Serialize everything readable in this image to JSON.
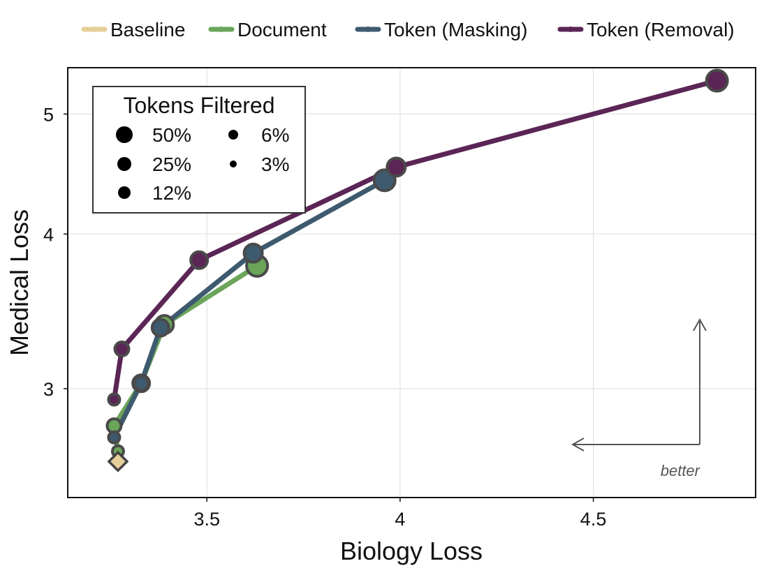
{
  "chart_data": {
    "type": "line",
    "xlabel": "Biology Loss",
    "ylabel": "Medical Loss",
    "xlim": [
      3.14,
      4.92
    ],
    "ylim": [
      2.45,
      5.45
    ],
    "y_scale": "log",
    "x_ticks": [
      3.5,
      4,
      4.5
    ],
    "x_tick_labels": [
      "3.5",
      "4",
      "4.5"
    ],
    "y_ticks": [
      3,
      4,
      5
    ],
    "y_tick_labels": [
      "3",
      "4",
      "5"
    ],
    "grid": true,
    "legend_placement": "top (above plot)",
    "series": [
      {
        "name": "Baseline",
        "color": "#e6cf98",
        "marker": "diamond",
        "points": [
          {
            "x": 3.27,
            "y": 2.62,
            "tokens_filtered": null
          }
        ]
      },
      {
        "name": "Document",
        "color": "#6aa55a",
        "marker": "circle",
        "points": [
          {
            "x": 3.27,
            "y": 2.67,
            "tokens_filtered": "3%"
          },
          {
            "x": 3.26,
            "y": 2.8,
            "tokens_filtered": "6%"
          },
          {
            "x": 3.33,
            "y": 3.03,
            "tokens_filtered": "12%"
          },
          {
            "x": 3.39,
            "y": 3.38,
            "tokens_filtered": "25%"
          },
          {
            "x": 3.63,
            "y": 3.77,
            "tokens_filtered": "50%"
          }
        ]
      },
      {
        "name": "Token (Masking)",
        "color": "#3e5a6e",
        "marker": "circle",
        "points": [
          {
            "x": 3.26,
            "y": 2.74,
            "tokens_filtered": "3%"
          },
          {
            "x": 3.33,
            "y": 3.03,
            "tokens_filtered": "6%"
          },
          {
            "x": 3.38,
            "y": 3.36,
            "tokens_filtered": "12%"
          },
          {
            "x": 3.62,
            "y": 3.86,
            "tokens_filtered": "25%"
          },
          {
            "x": 3.96,
            "y": 4.42,
            "tokens_filtered": "50%"
          }
        ]
      },
      {
        "name": "Token (Removal)",
        "color": "#5b2556",
        "marker": "circle",
        "points": [
          {
            "x": 3.26,
            "y": 2.94,
            "tokens_filtered": "3%"
          },
          {
            "x": 3.28,
            "y": 3.23,
            "tokens_filtered": "6%"
          },
          {
            "x": 3.48,
            "y": 3.81,
            "tokens_filtered": "12%"
          },
          {
            "x": 3.99,
            "y": 4.53,
            "tokens_filtered": "25%"
          },
          {
            "x": 4.82,
            "y": 5.32,
            "tokens_filtered": "50%"
          }
        ]
      }
    ],
    "size_legend": {
      "title": "Tokens Filtered",
      "entries": [
        {
          "label": "50%",
          "radius": 12
        },
        {
          "label": "25%",
          "radius": 10
        },
        {
          "label": "12%",
          "radius": 9
        },
        {
          "label": "6%",
          "radius": 7
        },
        {
          "label": "3%",
          "radius": 5
        }
      ]
    },
    "annotation": {
      "text": "better"
    }
  }
}
